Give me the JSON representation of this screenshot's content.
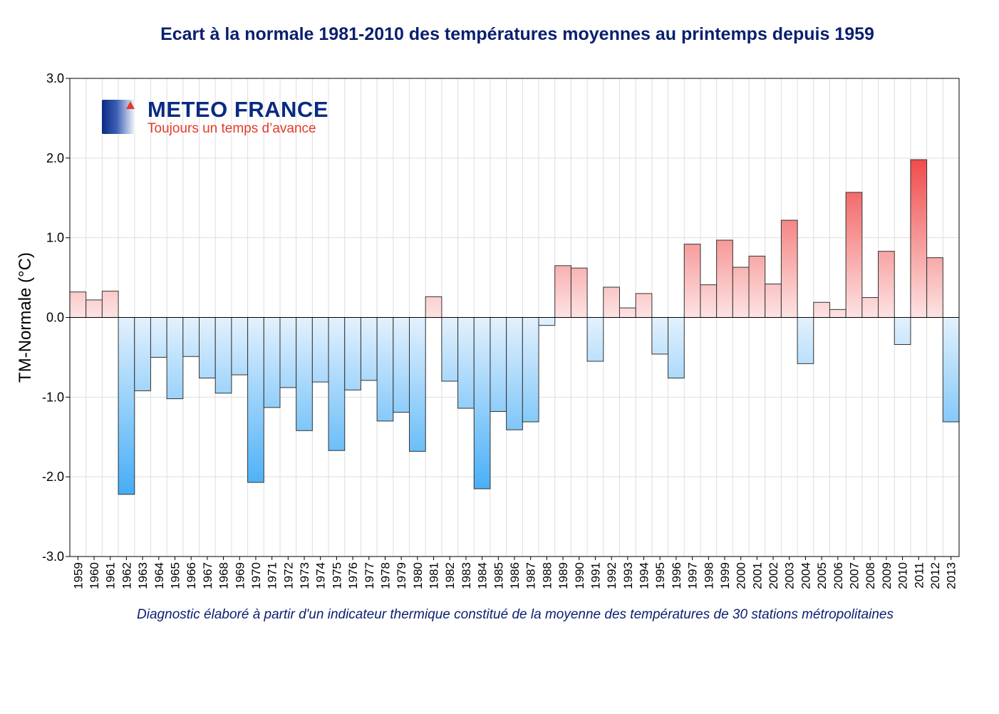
{
  "logo": {
    "name": "METEO FRANCE",
    "slogan": "Toujours un temps d’avance"
  },
  "chart_data": {
    "type": "bar",
    "title": "Ecart à la normale 1981-2010 des températures moyennes au printemps depuis 1959",
    "ylabel": "TM-Normale (°C)",
    "xlabel": "",
    "footnote": "Diagnostic élaboré à partir d'un indicateur thermique constitué de la moyenne des températures de 30 stations métropolitaines",
    "ylim": [
      -3.0,
      3.0
    ],
    "yticks": [
      "-3.0",
      "-2.0",
      "-1.0",
      "0.0",
      "1.0",
      "2.0",
      "3.0"
    ],
    "grid": true,
    "colors": {
      "positive_dark": "#f04a4a",
      "positive_light": "#fde3e3",
      "negative_dark": "#46aef7",
      "negative_light": "#e3f1fd",
      "text": "#0a1f6e"
    },
    "categories": [
      "1959",
      "1960",
      "1961",
      "1962",
      "1963",
      "1964",
      "1965",
      "1966",
      "1967",
      "1968",
      "1969",
      "1970",
      "1971",
      "1972",
      "1973",
      "1974",
      "1975",
      "1976",
      "1977",
      "1978",
      "1979",
      "1980",
      "1981",
      "1982",
      "1983",
      "1984",
      "1985",
      "1986",
      "1987",
      "1988",
      "1989",
      "1990",
      "1991",
      "1992",
      "1993",
      "1994",
      "1995",
      "1996",
      "1997",
      "1998",
      "1999",
      "2000",
      "2001",
      "2002",
      "2003",
      "2004",
      "2005",
      "2006",
      "2007",
      "2008",
      "2009",
      "2010",
      "2011",
      "2012",
      "2013"
    ],
    "values": [
      0.32,
      0.22,
      0.33,
      -2.22,
      -0.92,
      -0.5,
      -1.02,
      -0.49,
      -0.76,
      -0.95,
      -0.72,
      -2.07,
      -1.13,
      -0.88,
      -1.42,
      -0.81,
      -1.67,
      -0.91,
      -0.79,
      -1.3,
      -1.19,
      -1.68,
      0.26,
      -0.8,
      -1.14,
      -2.15,
      -1.18,
      -1.41,
      -1.31,
      -0.1,
      0.65,
      0.62,
      -0.55,
      0.38,
      0.12,
      0.3,
      -0.46,
      -0.76,
      0.92,
      0.41,
      0.97,
      0.63,
      0.77,
      0.42,
      1.22,
      -0.58,
      0.19,
      0.1,
      1.57,
      0.25,
      0.83,
      -0.34,
      1.98,
      0.75,
      -1.31
    ]
  }
}
